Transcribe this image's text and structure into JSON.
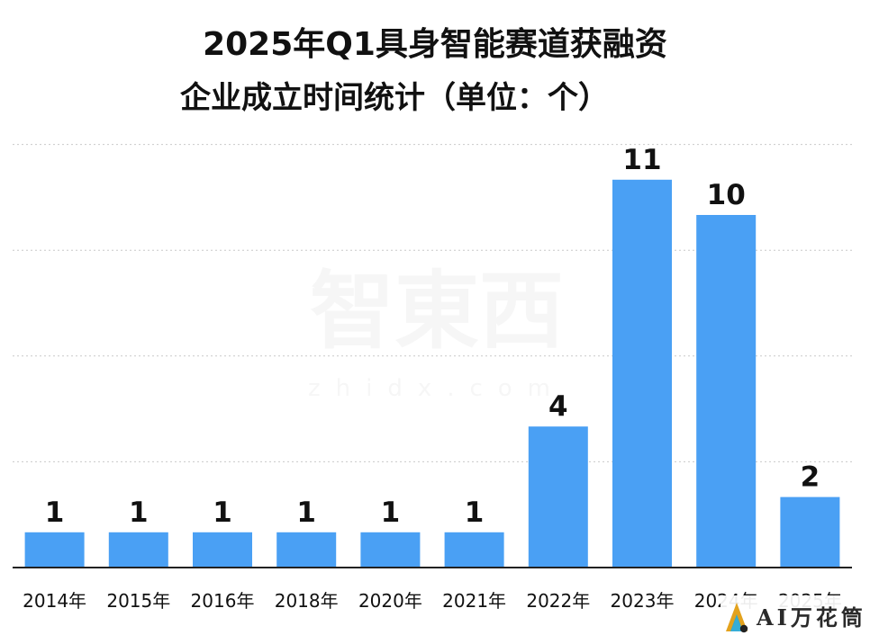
{
  "chart_data": {
    "type": "bar",
    "title": "2025年Q1具身智能赛道获融资企业成立时间统计（单位：个）",
    "title_lines": [
      "2025年Q1具身智能赛道获融资",
      "企业成立时间统计（单位：个）"
    ],
    "categories": [
      "2014年",
      "2015年",
      "2016年",
      "2018年",
      "2020年",
      "2021年",
      "2022年",
      "2023年",
      "2024年",
      "2025年"
    ],
    "values": [
      1,
      1,
      1,
      1,
      1,
      1,
      4,
      11,
      10,
      2
    ],
    "ylim": [
      0,
      12
    ],
    "grid": true,
    "bar_color": "#4aa0f4",
    "label_color": "#111111",
    "axis_color": "#222222",
    "grid_color": "#c9c9c9"
  },
  "watermark": {
    "main_text": "智東西",
    "sub_text": "zhidx.com"
  },
  "brand_logo": {
    "text": "AI万花筒",
    "icon": "triangle-logo-icon",
    "primary_color": "#e3a21d",
    "secondary_color": "#2aa9d6",
    "text_color": "#2a2a2a"
  }
}
